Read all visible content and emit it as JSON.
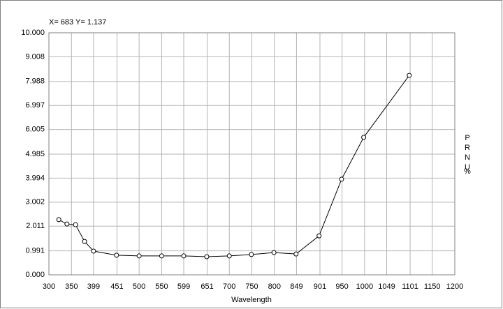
{
  "chart_data": {
    "type": "line",
    "readout": "X= 683 Y= 1.137",
    "x_label": "Wavelength",
    "y_label": "PRNU",
    "y_unit": "%",
    "series": [
      {
        "name": null,
        "color": "#000000",
        "x": [
          322,
          340,
          359,
          379,
          399,
          450,
          500,
          550,
          599,
          650,
          700,
          749,
          799,
          848,
          899,
          949,
          998,
          1099
        ],
        "values": [
          2.28,
          2.1,
          2.07,
          1.38,
          0.98,
          0.81,
          0.78,
          0.78,
          0.78,
          0.75,
          0.78,
          0.84,
          0.92,
          0.86,
          1.61,
          3.95,
          5.68,
          8.24
        ]
      }
    ],
    "xlim": [
      300,
      1200
    ],
    "ylim": [
      0,
      10
    ],
    "xticks": [
      300,
      350,
      399,
      451,
      500,
      550,
      599,
      651,
      700,
      750,
      800,
      849,
      901,
      950,
      1000,
      1049,
      1101,
      1150,
      1200
    ],
    "yticks": [
      {
        "value": 0,
        "label": "0.000"
      },
      0.991,
      2.011,
      3.002,
      3.994,
      4.985,
      6.005,
      6.997,
      7.988,
      9.008,
      {
        "value": 10,
        "label": "10.000"
      }
    ],
    "grid": true
  }
}
